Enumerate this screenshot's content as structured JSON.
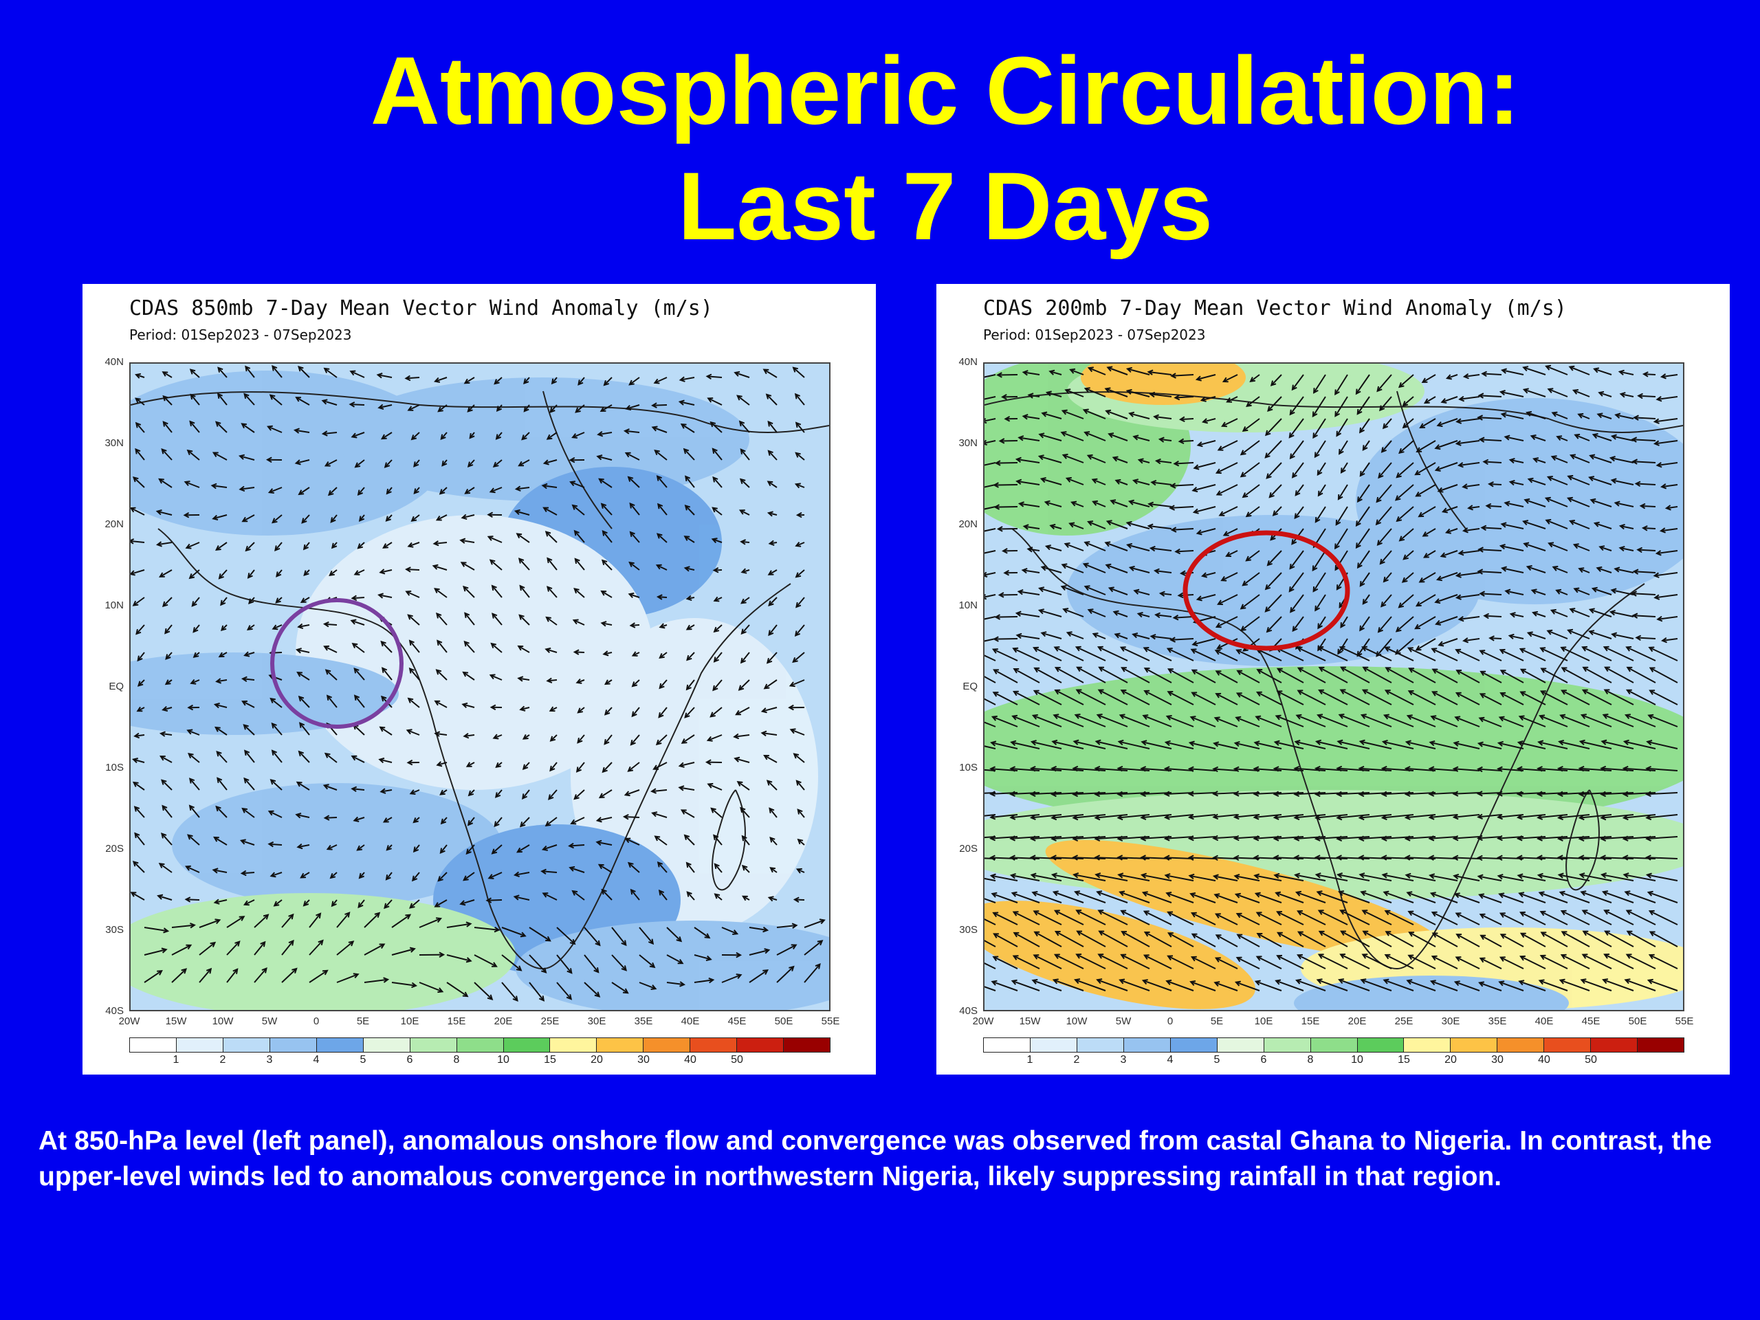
{
  "slide": {
    "title_line1": "Atmospheric Circulation:",
    "title_line2": "Last 7 Days",
    "caption": "At 850-hPa level (left panel), anomalous onshore flow and convergence was observed from castal Ghana to Nigeria. In contrast, the upper-level winds led to anomalous convergence in northwestern Nigeria, likely suppressing rainfall in that region."
  },
  "left_panel": {
    "title": "CDAS 850mb 7-Day Mean Vector Wind Anomaly (m/s)",
    "period": "Period: 01Sep2023 - 07Sep2023",
    "highlight_color": "#7a3fa0"
  },
  "right_panel": {
    "title": "CDAS 200mb 7-Day Mean Vector Wind Anomaly (m/s)",
    "period": "Period: 01Sep2023 - 07Sep2023",
    "highlight_color": "#cc1111"
  },
  "axes": {
    "lat_labels": [
      "40N",
      "30N",
      "20N",
      "10N",
      "EQ",
      "10S",
      "20S",
      "30S",
      "40S"
    ],
    "lon_labels": [
      "20W",
      "15W",
      "10W",
      "5W",
      "0",
      "5E",
      "10E",
      "15E",
      "20E",
      "25E",
      "30E",
      "35E",
      "40E",
      "45E",
      "50E",
      "55E"
    ]
  },
  "colorbar": {
    "colors": [
      "#ffffff",
      "#e1f0fb",
      "#bcdcf7",
      "#97c3f0",
      "#6da6e8",
      "#e4f7e0",
      "#b7ecb2",
      "#8ede8a",
      "#5ccc5c",
      "#fff59d",
      "#fdc346",
      "#f5902a",
      "#e84f1e",
      "#cc1f10",
      "#990000"
    ],
    "labels": [
      "1",
      "2",
      "3",
      "4",
      "5",
      "6",
      "8",
      "10",
      "15",
      "20",
      "30",
      "40",
      "50"
    ]
  }
}
